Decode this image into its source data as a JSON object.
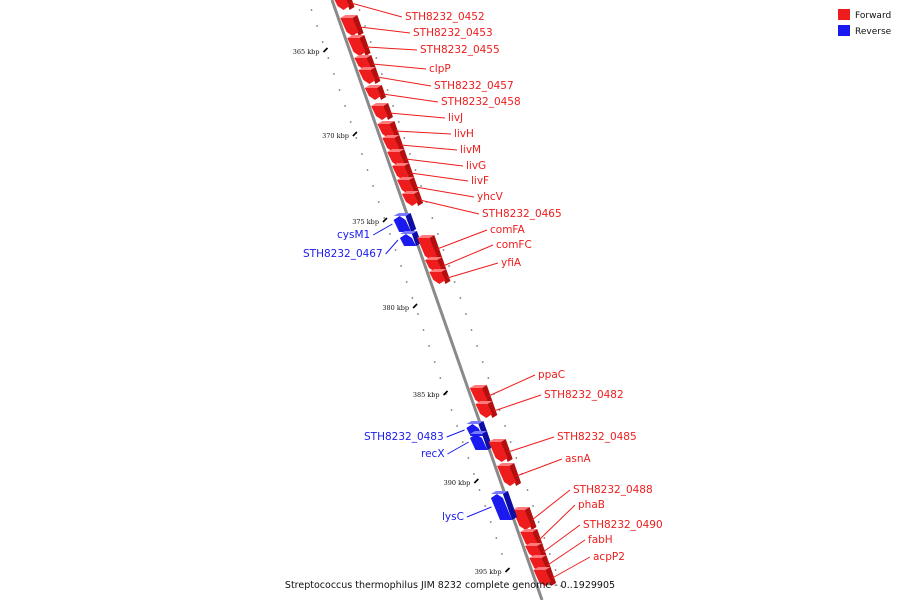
{
  "legend": [
    {
      "label": "Forward",
      "color": "#ee1c1c"
    },
    {
      "label": "Reverse",
      "color": "#1a1aee"
    }
  ],
  "caption": "Streptococcus thermophilus JIM 8232 complete genome - 0..1929905",
  "colors": {
    "forward": "#ee1c1c",
    "forward_dark": "#b30f0f",
    "forward_light": "#ff7a7a",
    "reverse": "#1a1aee",
    "reverse_dark": "#0d0da6",
    "reverse_light": "#7a7aff",
    "backbone": "#8a8a8a"
  },
  "ticks": [
    {
      "kbp": 365,
      "label": "365 kbp"
    },
    {
      "kbp": 370,
      "label": "370 kbp"
    },
    {
      "kbp": 375,
      "label": "375 kbp"
    },
    {
      "kbp": 380,
      "label": "380 kbp"
    },
    {
      "kbp": 385,
      "label": "385 kbp"
    },
    {
      "kbp": 390,
      "label": "390 kbp"
    },
    {
      "kbp": 395,
      "label": "395 kbp"
    }
  ],
  "genes": [
    {
      "name": "STH8232_0452",
      "strand": "forward"
    },
    {
      "name": "STH8232_0453",
      "strand": "forward"
    },
    {
      "name": "STH8232_0455",
      "strand": "forward"
    },
    {
      "name": "clpP",
      "strand": "forward"
    },
    {
      "name": "STH8232_0457",
      "strand": "forward"
    },
    {
      "name": "STH8232_0458",
      "strand": "forward"
    },
    {
      "name": "livJ",
      "strand": "forward"
    },
    {
      "name": "livH",
      "strand": "forward"
    },
    {
      "name": "livM",
      "strand": "forward"
    },
    {
      "name": "livG",
      "strand": "forward"
    },
    {
      "name": "livF",
      "strand": "forward"
    },
    {
      "name": "yhcV",
      "strand": "forward"
    },
    {
      "name": "STH8232_0465",
      "strand": "forward"
    },
    {
      "name": "cysM1",
      "strand": "reverse"
    },
    {
      "name": "STH8232_0467",
      "strand": "reverse"
    },
    {
      "name": "comFA",
      "strand": "forward"
    },
    {
      "name": "comFC",
      "strand": "forward"
    },
    {
      "name": "yfiA",
      "strand": "forward"
    },
    {
      "name": "ppaC",
      "strand": "forward"
    },
    {
      "name": "STH8232_0482",
      "strand": "forward"
    },
    {
      "name": "STH8232_0483",
      "strand": "reverse"
    },
    {
      "name": "recX",
      "strand": "reverse"
    },
    {
      "name": "STH8232_0485",
      "strand": "forward"
    },
    {
      "name": "asnA",
      "strand": "forward"
    },
    {
      "name": "STH8232_0488",
      "strand": "forward"
    },
    {
      "name": "lysC",
      "strand": "reverse"
    },
    {
      "name": "phaB",
      "strand": "forward"
    },
    {
      "name": "STH8232_0490",
      "strand": "forward"
    },
    {
      "name": "fabH",
      "strand": "forward"
    },
    {
      "name": "acpP2",
      "strand": "forward"
    }
  ]
}
